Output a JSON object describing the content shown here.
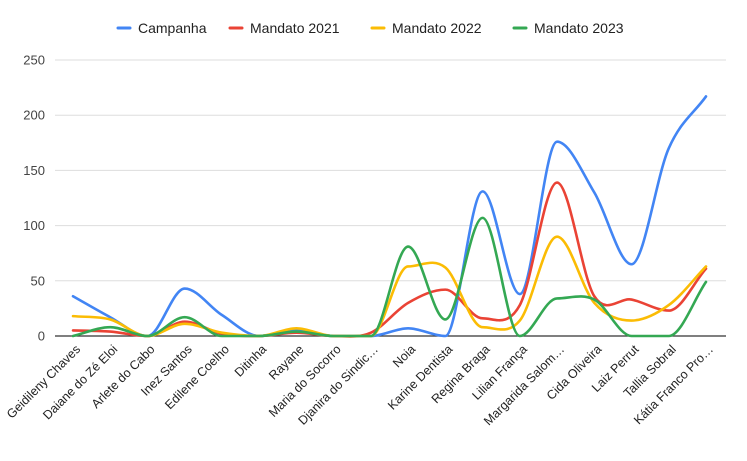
{
  "chart_data": {
    "type": "line",
    "title": "",
    "xlabel": "",
    "ylabel": "",
    "ylim": [
      0,
      250
    ],
    "yticks": [
      0,
      50,
      100,
      150,
      200,
      250
    ],
    "grid": "horizontal",
    "legend_position": "top",
    "categories": [
      "Geidileny Chaves",
      "Daiane do Zé Eloi",
      "Arlete do Cabo",
      "Inez Santos",
      "Edilene Coelho",
      "Ditinha",
      "Rayane",
      "Maria do Socorro",
      "Djanira do Sindic…",
      "Noia",
      "Karine Dentista",
      "Regina Braga",
      "Lilian França",
      "Margarida Salom…",
      "Cida Oliveira",
      "Laiz Perrut",
      "Tallia Sobral",
      "Kátia Franco Pro…"
    ],
    "series": [
      {
        "name": "Campanha",
        "color": "#4285F4",
        "values": [
          36,
          17,
          0,
          43,
          19,
          0,
          5,
          0,
          0,
          7,
          0,
          131,
          38,
          176,
          130,
          65,
          170,
          217
        ]
      },
      {
        "name": "Mandato 2021",
        "color": "#EA4335",
        "values": [
          5,
          4,
          0,
          13,
          2,
          0,
          3,
          0,
          3,
          30,
          42,
          16,
          28,
          139,
          36,
          33,
          23,
          61
        ]
      },
      {
        "name": "Mandato 2022",
        "color": "#FBBC04",
        "values": [
          18,
          15,
          0,
          11,
          3,
          0,
          7,
          0,
          0,
          63,
          62,
          8,
          14,
          90,
          30,
          14,
          28,
          63
        ]
      },
      {
        "name": "Mandato 2023",
        "color": "#34A853",
        "values": [
          0,
          8,
          0,
          17,
          0,
          0,
          4,
          0,
          0,
          81,
          15,
          107,
          0,
          34,
          33,
          0,
          0,
          49
        ]
      }
    ]
  }
}
